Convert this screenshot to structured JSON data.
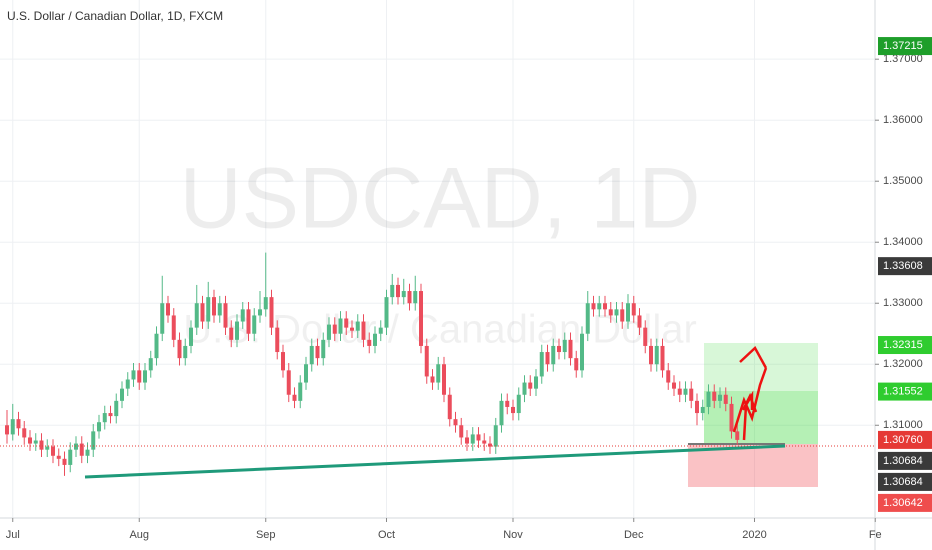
{
  "chart_data": {
    "type": "candlestick",
    "title": "U.S. Dollar / Canadian Dollar, 1D, FXCM",
    "watermark": "USDCAD, 1D",
    "watermark_subtitle": "U.S. Dollar / Canadian Dollar",
    "up_color": "#53b987",
    "down_color": "#eb4d5c",
    "categories": [
      null,
      "Jul",
      null,
      null,
      null,
      null,
      null,
      null,
      null,
      null,
      null,
      null,
      null,
      null,
      null,
      null,
      null,
      null,
      null,
      null,
      null,
      null,
      null,
      "Aug",
      null,
      null,
      null,
      null,
      null,
      null,
      null,
      null,
      null,
      null,
      null,
      null,
      null,
      null,
      null,
      null,
      null,
      null,
      null,
      null,
      null,
      "Sep",
      null,
      null,
      null,
      null,
      null,
      null,
      null,
      null,
      null,
      null,
      null,
      null,
      null,
      null,
      null,
      null,
      null,
      null,
      null,
      null,
      "Oct",
      null,
      null,
      null,
      null,
      null,
      null,
      null,
      null,
      null,
      null,
      null,
      null,
      null,
      null,
      null,
      null,
      null,
      null,
      null,
      null,
      null,
      "Nov",
      null,
      null,
      null,
      null,
      null,
      null,
      null,
      null,
      null,
      null,
      null,
      null,
      null,
      null,
      null,
      null,
      null,
      null,
      null,
      null,
      "Dec",
      null,
      null,
      null,
      null,
      null,
      null,
      null,
      null,
      null,
      null,
      null,
      null,
      null,
      null,
      null,
      null,
      null,
      null,
      null,
      null,
      "2020",
      null,
      null,
      null,
      null,
      null,
      null,
      null,
      null,
      null,
      null,
      null,
      null,
      null,
      null,
      null,
      null,
      null,
      null,
      null,
      null,
      "Fe"
    ],
    "open": [
      1.31,
      1.3085,
      1.311,
      1.3095,
      1.308,
      1.307,
      1.3075,
      1.306,
      1.3065,
      1.305,
      1.3045,
      1.3035,
      1.306,
      1.307,
      1.305,
      1.306,
      1.309,
      1.3105,
      1.312,
      1.3115,
      1.314,
      1.316,
      1.3175,
      1.319,
      1.317,
      1.319,
      1.321,
      1.325,
      1.33,
      1.328,
      1.324,
      1.321,
      1.323,
      1.326,
      1.33,
      1.327,
      1.331,
      1.328,
      1.33,
      1.326,
      1.324,
      1.327,
      1.329,
      1.325,
      1.328,
      1.329,
      1.331,
      1.326,
      1.322,
      1.319,
      1.315,
      1.314,
      1.317,
      1.32,
      1.323,
      1.321,
      1.324,
      1.3265,
      1.325,
      1.3275,
      1.326,
      1.3255,
      1.327,
      1.324,
      1.323,
      1.325,
      1.326,
      1.331,
      1.333,
      1.331,
      1.332,
      1.33,
      1.332,
      1.323,
      1.318,
      1.317,
      1.32,
      1.315,
      1.311,
      1.31,
      1.308,
      1.307,
      1.3085,
      1.3075,
      1.307,
      1.3065,
      1.31,
      1.314,
      1.313,
      1.312,
      1.315,
      1.317,
      1.316,
      1.318,
      1.322,
      1.32,
      1.323,
      1.322,
      1.324,
      1.321,
      1.319,
      1.325,
      1.33,
      1.329,
      1.33,
      1.329,
      1.328,
      1.329,
      1.327,
      1.33,
      1.328,
      1.326,
      1.323,
      1.32,
      1.323,
      1.319,
      1.317,
      1.316,
      1.315,
      1.316,
      1.314,
      1.312,
      1.313,
      1.3155,
      1.314,
      1.315,
      1.3135,
      1.309,
      null,
      null,
      null,
      null,
      null,
      null,
      null,
      null,
      null,
      null,
      null,
      null,
      null,
      null,
      null,
      null,
      null,
      null,
      null,
      null,
      null,
      null,
      null,
      null
    ],
    "high": [
      1.3125,
      1.3135,
      1.3122,
      1.3107,
      1.3092,
      1.3087,
      1.3087,
      1.3077,
      1.3077,
      1.3062,
      1.3057,
      1.3072,
      1.3082,
      1.3082,
      1.3072,
      1.3102,
      1.3117,
      1.3132,
      1.3132,
      1.3152,
      1.3172,
      1.3187,
      1.3202,
      1.3202,
      1.3202,
      1.3222,
      1.3262,
      1.3345,
      1.3312,
      1.3292,
      1.3252,
      1.3242,
      1.3272,
      1.333,
      1.3312,
      1.3335,
      1.3322,
      1.3312,
      1.3312,
      1.3272,
      1.3282,
      1.3302,
      1.3302,
      1.3292,
      1.332,
      1.3383,
      1.3322,
      1.3272,
      1.3232,
      1.3202,
      1.3162,
      1.3182,
      1.3212,
      1.3242,
      1.3242,
      1.3252,
      1.3277,
      1.3277,
      1.3287,
      1.3287,
      1.3272,
      1.3282,
      1.3282,
      1.3252,
      1.3262,
      1.3272,
      1.3322,
      1.3348,
      1.3342,
      1.334,
      1.3332,
      1.3345,
      1.3332,
      1.3242,
      1.3192,
      1.3212,
      1.3212,
      1.3162,
      1.3122,
      1.3112,
      1.3092,
      1.3097,
      1.3097,
      1.3087,
      1.3082,
      1.3112,
      1.3152,
      1.3152,
      1.3142,
      1.3162,
      1.3182,
      1.3182,
      1.3192,
      1.3232,
      1.3232,
      1.3242,
      1.3242,
      1.3252,
      1.3252,
      1.3222,
      1.3262,
      1.332,
      1.3312,
      1.3312,
      1.3312,
      1.3302,
      1.3302,
      1.3302,
      1.3315,
      1.3312,
      1.3292,
      1.3272,
      1.3242,
      1.3242,
      1.3242,
      1.3202,
      1.3182,
      1.3172,
      1.3172,
      1.3172,
      1.3152,
      1.3142,
      1.3167,
      1.3167,
      1.3162,
      1.3162,
      1.3147,
      1.3102,
      null,
      null,
      null,
      null,
      null,
      null,
      null,
      null,
      null,
      null,
      null,
      null,
      null,
      null,
      null,
      null,
      null,
      null,
      null,
      null,
      null,
      null,
      null,
      null
    ],
    "low": [
      1.307,
      1.3075,
      1.3083,
      1.3068,
      1.3058,
      1.3058,
      1.3048,
      1.3048,
      1.3038,
      1.3033,
      1.3017,
      1.3023,
      1.3048,
      1.3038,
      1.3038,
      1.3048,
      1.3078,
      1.3093,
      1.3103,
      1.3103,
      1.3128,
      1.3148,
      1.3163,
      1.3158,
      1.3158,
      1.3178,
      1.3198,
      1.3238,
      1.3268,
      1.3228,
      1.3198,
      1.3198,
      1.3218,
      1.3248,
      1.3258,
      1.3258,
      1.3268,
      1.3268,
      1.3248,
      1.3228,
      1.3228,
      1.3258,
      1.3238,
      1.3238,
      1.3268,
      1.3278,
      1.3248,
      1.3208,
      1.3178,
      1.3138,
      1.3128,
      1.3128,
      1.3158,
      1.3188,
      1.3198,
      1.3198,
      1.3228,
      1.3238,
      1.3238,
      1.3248,
      1.3243,
      1.3243,
      1.3228,
      1.3218,
      1.3218,
      1.3238,
      1.3248,
      1.3298,
      1.3298,
      1.3298,
      1.3288,
      1.3288,
      1.3218,
      1.3168,
      1.3158,
      1.3158,
      1.3138,
      1.3098,
      1.3088,
      1.3068,
      1.3058,
      1.3058,
      1.3063,
      1.3058,
      1.3053,
      1.3053,
      1.3088,
      1.3118,
      1.3108,
      1.3108,
      1.3138,
      1.3148,
      1.3148,
      1.3168,
      1.3188,
      1.3188,
      1.3208,
      1.3208,
      1.3198,
      1.3178,
      1.3178,
      1.3238,
      1.3278,
      1.3278,
      1.3278,
      1.3268,
      1.3268,
      1.3258,
      1.3258,
      1.3268,
      1.3248,
      1.3218,
      1.3188,
      1.3188,
      1.3178,
      1.3158,
      1.3148,
      1.3138,
      1.3138,
      1.3128,
      1.31,
      1.3108,
      1.3118,
      1.3128,
      1.3128,
      1.3123,
      1.3078,
      1.3068,
      null,
      null,
      null,
      null,
      null,
      null,
      null,
      null,
      null,
      null,
      null,
      null,
      null,
      null,
      null,
      null,
      null,
      null,
      null,
      null,
      null,
      null,
      null,
      null
    ],
    "close": [
      1.3085,
      1.311,
      1.3095,
      1.308,
      1.307,
      1.3075,
      1.306,
      1.3065,
      1.305,
      1.3045,
      1.3035,
      1.306,
      1.307,
      1.305,
      1.306,
      1.309,
      1.3105,
      1.312,
      1.3115,
      1.314,
      1.316,
      1.3175,
      1.319,
      1.317,
      1.319,
      1.321,
      1.325,
      1.33,
      1.328,
      1.324,
      1.321,
      1.323,
      1.326,
      1.33,
      1.327,
      1.331,
      1.328,
      1.33,
      1.326,
      1.324,
      1.327,
      1.329,
      1.325,
      1.328,
      1.329,
      1.331,
      1.326,
      1.322,
      1.319,
      1.315,
      1.314,
      1.317,
      1.32,
      1.323,
      1.321,
      1.324,
      1.3265,
      1.325,
      1.3275,
      1.326,
      1.3255,
      1.327,
      1.324,
      1.323,
      1.325,
      1.326,
      1.331,
      1.333,
      1.331,
      1.332,
      1.33,
      1.332,
      1.323,
      1.318,
      1.317,
      1.32,
      1.315,
      1.311,
      1.31,
      1.308,
      1.307,
      1.3085,
      1.3075,
      1.307,
      1.3065,
      1.31,
      1.314,
      1.313,
      1.312,
      1.315,
      1.317,
      1.316,
      1.318,
      1.322,
      1.32,
      1.323,
      1.322,
      1.324,
      1.321,
      1.319,
      1.325,
      1.33,
      1.329,
      1.33,
      1.329,
      1.328,
      1.329,
      1.327,
      1.33,
      1.328,
      1.326,
      1.323,
      1.32,
      1.323,
      1.319,
      1.317,
      1.316,
      1.315,
      1.316,
      1.314,
      1.312,
      1.313,
      1.3155,
      1.314,
      1.315,
      1.3135,
      1.309,
      1.3076,
      null,
      null,
      null,
      null,
      null,
      null,
      null,
      null,
      null,
      null,
      null,
      null,
      null,
      null,
      null,
      null,
      null,
      null,
      null,
      null,
      null,
      null,
      null,
      null
    ],
    "ylim": [
      1.2948,
      1.3797
    ],
    "yticks": [
      {
        "value": 1.31,
        "label": "1.31000"
      },
      {
        "value": 1.32,
        "label": "1.32000"
      },
      {
        "value": 1.33,
        "label": "1.33000"
      },
      {
        "value": 1.34,
        "label": "1.34000"
      },
      {
        "value": 1.35,
        "label": "1.35000"
      },
      {
        "value": 1.36,
        "label": "1.36000"
      },
      {
        "value": 1.37,
        "label": "1.37000"
      }
    ],
    "grid": true,
    "price_tags": [
      {
        "value": 1.37215,
        "color": "#1e9e2a"
      },
      {
        "value": 1.33608,
        "color": "#3a3a3a"
      },
      {
        "value": 1.32315,
        "color": "#2fcc2f"
      },
      {
        "value": 1.31552,
        "color": "#2fcc2f"
      },
      {
        "value": 1.3076,
        "label": "1.30760",
        "color": "#e53935"
      },
      {
        "value": 1.30684,
        "color": "#3a3a3a"
      },
      {
        "value": 1.30684,
        "color": "#3a3a3a"
      },
      {
        "value": 1.30642,
        "color": "#ef4d4d"
      }
    ]
  }
}
